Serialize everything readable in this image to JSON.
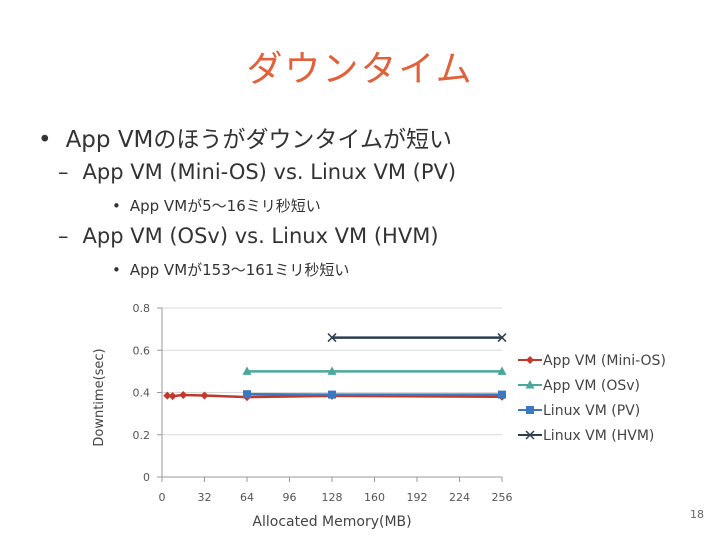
{
  "slide": {
    "title": "ダウンタイム",
    "bullets": [
      {
        "marker": "•",
        "text": "App VMのほうがダウンタイムが短い"
      },
      {
        "marker": "–",
        "text": "App VM (Mini-OS) vs. Linux VM (PV)"
      },
      {
        "marker": "•",
        "text": "App VMが5～16ミリ秒短い"
      },
      {
        "marker": "–",
        "text": "App VM (OSv) vs. Linux VM (HVM)"
      },
      {
        "marker": "•",
        "text": "App VMが153～161ミリ秒短い"
      }
    ],
    "page_number": "18"
  },
  "chart_data": {
    "type": "line",
    "xlabel": "Allocated Memory(MB)",
    "ylabel": "Downtime(sec)",
    "xlim": [
      0,
      256
    ],
    "ylim": [
      0,
      0.8
    ],
    "xticks": [
      0,
      32,
      64,
      96,
      128,
      160,
      192,
      224,
      256
    ],
    "yticks": [
      "0",
      "0.2",
      "0.4",
      "0.6",
      "0.8"
    ],
    "grid": true,
    "legend_position": "right",
    "series": [
      {
        "name": "App VM (Mini-OS)",
        "color": "#c0392b",
        "marker": "diamond",
        "x": [
          4,
          8,
          16,
          32,
          64,
          128,
          256
        ],
        "y": [
          0.385,
          0.383,
          0.388,
          0.386,
          0.378,
          0.384,
          0.38
        ]
      },
      {
        "name": "App VM (OSv)",
        "color": "#4aa89b",
        "marker": "triangle",
        "x": [
          64,
          128,
          256
        ],
        "y": [
          0.5,
          0.5,
          0.5
        ]
      },
      {
        "name": "Linux VM (PV)",
        "color": "#3a78c2",
        "marker": "square",
        "x": [
          64,
          128,
          256
        ],
        "y": [
          0.392,
          0.39,
          0.39
        ]
      },
      {
        "name": "Linux VM (HVM)",
        "color": "#2c3e50",
        "marker": "x",
        "x": [
          128,
          256
        ],
        "y": [
          0.66,
          0.66
        ]
      }
    ]
  }
}
